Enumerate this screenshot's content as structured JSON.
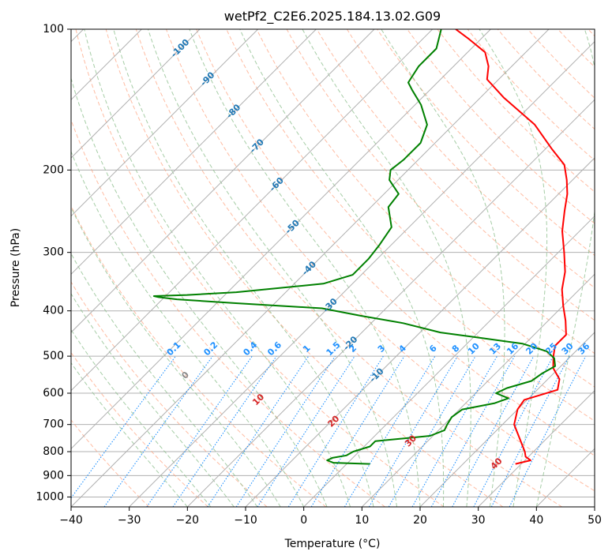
{
  "chart_data": {
    "type": "line",
    "title": "wetPf2_C2E6.2025.184.13.02.G09",
    "xlabel": "Temperature (°C)",
    "ylabel": "Pressure (hPa)",
    "xlim": [
      -40,
      50
    ],
    "ylim": [
      1050,
      100
    ],
    "y_scale": "log",
    "x_ticks": [
      -40,
      -30,
      -20,
      -10,
      0,
      10,
      20,
      30,
      40,
      50
    ],
    "y_ticks": [
      1000,
      900,
      800,
      700,
      600,
      500,
      400,
      300,
      200,
      100
    ],
    "grid": true,
    "skew": 45,
    "series": [
      {
        "color": "#ff0000",
        "pressure": [
          850,
          835,
          820,
          800,
          760,
          700,
          650,
          620,
          590,
          560,
          530,
          500,
          475,
          450,
          420,
          390,
          360,
          330,
          300,
          270,
          245,
          225,
          210,
          195,
          180,
          160,
          140,
          128,
          120,
          112,
          105,
          100
        ],
        "values": [
          29,
          31,
          29.5,
          28.5,
          26,
          22,
          20,
          19.5,
          23.5,
          22,
          19,
          17,
          15.5,
          15.5,
          13,
          10,
          7,
          4.5,
          1,
          -3,
          -6,
          -8.5,
          -11,
          -14,
          -19,
          -26,
          -36,
          -42,
          -44,
          -47,
          -52,
          -56
        ]
      },
      {
        "color": "#008000",
        "pressure": [
          850,
          845,
          835,
          825,
          815,
          800,
          780,
          760,
          740,
          720,
          700,
          675,
          650,
          630,
          615,
          600,
          585,
          565,
          545,
          525,
          505,
          488,
          470,
          455,
          445,
          425,
          410,
          395,
          385,
          378,
          374,
          372,
          370,
          365,
          350,
          335,
          310,
          290,
          265,
          240,
          225,
          210,
          200,
          190,
          175,
          160,
          145,
          135,
          130,
          120,
          110,
          100
        ],
        "values": [
          4,
          -2.5,
          -4,
          -3.5,
          -1.5,
          -1,
          1,
          1,
          9.5,
          11,
          10.5,
          10,
          10.5,
          15,
          16.5,
          13.5,
          14.5,
          17.5,
          18,
          19,
          17.5,
          15,
          9.5,
          0,
          -6.5,
          -14.5,
          -23,
          -31,
          -47,
          -57.5,
          -61,
          -62,
          -56.5,
          -48.5,
          -35,
          -31.5,
          -31.5,
          -32,
          -33,
          -37,
          -37.5,
          -41.5,
          -43,
          -42.5,
          -42.5,
          -44.5,
          -49,
          -53,
          -55,
          -56,
          -56,
          -58.5
        ]
      }
    ],
    "isotherm_labels": [
      "-100",
      "-90",
      "-80",
      "-70",
      "-60",
      "-50",
      "-40",
      "-30",
      "-20",
      "-10"
    ],
    "dry_adiabat_labels": [
      "0",
      "10",
      "20",
      "30",
      "40"
    ],
    "mixing_ratio_labels": [
      "0.1",
      "0.2",
      "0.4",
      "0.6",
      "1",
      "1.5",
      "2",
      "3",
      "4",
      "6",
      "8",
      "10",
      "13",
      "16",
      "20",
      "25",
      "30",
      "36"
    ],
    "mixing_ratio_values": [
      0.1,
      0.2,
      0.4,
      0.6,
      1,
      1.5,
      2,
      3,
      4,
      6,
      8,
      10,
      13,
      16,
      20,
      25,
      30,
      36
    ],
    "colors": {
      "temperature": "#ff0000",
      "dewpoint": "#008000",
      "isotherm_label": "#1f77b4",
      "mixing_ratio": "#1e90ff",
      "dry_adiabat": "#ffa07a",
      "moist_adiabat": "#90c090",
      "dry_label": "#d62728",
      "grid": "#b0b0b0"
    }
  }
}
